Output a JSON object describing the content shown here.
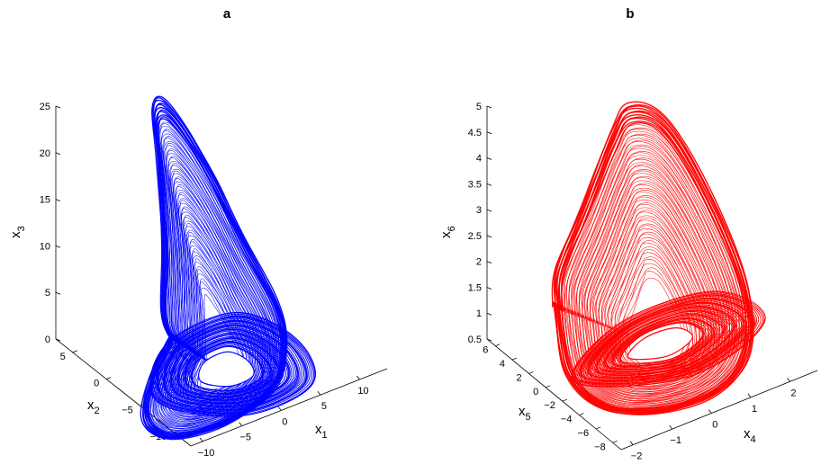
{
  "chart_data": [
    {
      "type": "line",
      "title": "a",
      "projection": "3d",
      "xlabel": "x1",
      "ylabel": "x2",
      "zlabel": "x3",
      "xlim": [
        -10,
        15
      ],
      "ylim": [
        -13,
        8
      ],
      "zlim": [
        0,
        25
      ],
      "xticks": [
        "−10",
        "−5",
        "0",
        "5",
        "10"
      ],
      "yticks": [
        "−10",
        "−5",
        "0",
        "5"
      ],
      "zticks": [
        "0",
        "5",
        "10",
        "15",
        "20",
        "25"
      ],
      "color": "#0000ff",
      "series": [
        {
          "description": "chaotic attractor trajectory, dense band; outer envelope then inner hole",
          "points": [
            [
              -2,
              0,
              2.0
            ],
            [
              -8,
              -4,
              1.5
            ],
            [
              -12,
              -8,
              0.5
            ],
            [
              -11,
              -11,
              0
            ],
            [
              -5,
              -12,
              0
            ],
            [
              3,
              -10,
              0
            ],
            [
              8,
              -6,
              1
            ],
            [
              10,
              -2,
              3
            ],
            [
              9,
              2,
              8
            ],
            [
              7,
              4,
              14
            ],
            [
              4,
              5,
              20
            ],
            [
              1,
              5,
              24
            ],
            [
              -1,
              4,
              24
            ],
            [
              -2,
              2,
              20
            ],
            [
              -3,
              0,
              12
            ],
            [
              -4,
              -1,
              6
            ],
            [
              -3,
              -1,
              3
            ],
            [
              -2,
              -1,
              2
            ]
          ],
          "hole": [
            [
              -3,
              -6,
              0.8
            ],
            [
              -1,
              -8,
              0.7
            ],
            [
              2,
              -8,
              0.8
            ],
            [
              3,
              -6,
              1
            ],
            [
              2,
              -4,
              1.2
            ],
            [
              -1,
              -4,
              1
            ],
            [
              -3,
              -6,
              0.8
            ]
          ]
        }
      ]
    },
    {
      "type": "line",
      "title": "b",
      "projection": "3d",
      "xlabel": "x4",
      "ylabel": "x5",
      "zlabel": "x6",
      "xlim": [
        -2.3,
        3
      ],
      "ylim": [
        -8.5,
        6
      ],
      "zlim": [
        0.5,
        5
      ],
      "xticks": [
        "−2",
        "−1",
        "0",
        "1",
        "2"
      ],
      "yticks": [
        "−8",
        "−6",
        "−4",
        "−2",
        "0",
        "2",
        "4",
        "6"
      ],
      "zticks": [
        "0.5",
        "1",
        "1.5",
        "2",
        "2.5",
        "3",
        "3.5",
        "4",
        "4.5",
        "5"
      ],
      "color": "#ff0000",
      "series": [
        {
          "description": "chaotic attractor trajectory, dense band; outer envelope then inner hole",
          "points": [
            [
              -1.5,
              2,
              1.5
            ],
            [
              -2.2,
              -2,
              1.0
            ],
            [
              -2.0,
              -5,
              0.7
            ],
            [
              -1.0,
              -7,
              0.6
            ],
            [
              0.5,
              -7.5,
              0.6
            ],
            [
              1.8,
              -6,
              0.8
            ],
            [
              2.5,
              -3,
              1.5
            ],
            [
              2.2,
              0,
              3.0
            ],
            [
              1.5,
              2,
              4.3
            ],
            [
              0.8,
              3,
              4.6
            ],
            [
              0.3,
              3,
              4.2
            ],
            [
              -0.5,
              3,
              3.0
            ],
            [
              -1.2,
              3,
              2.0
            ],
            [
              -1.5,
              2,
              1.5
            ]
          ],
          "hole": [
            [
              -0.6,
              -2.5,
              0.9
            ],
            [
              0.2,
              -3.5,
              0.85
            ],
            [
              1.0,
              -3,
              0.9
            ],
            [
              0.8,
              -2,
              1.0
            ],
            [
              0,
              -1.8,
              1.0
            ],
            [
              -0.6,
              -2.5,
              0.9
            ]
          ]
        }
      ]
    }
  ]
}
